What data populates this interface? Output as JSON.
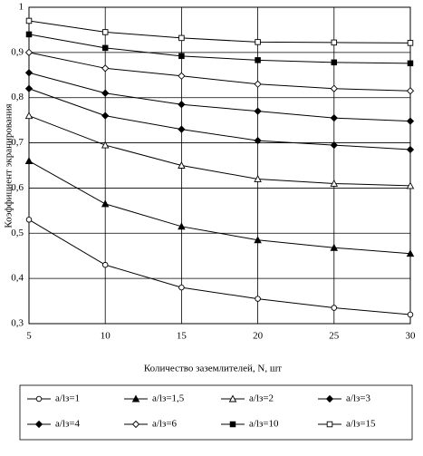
{
  "chart_data": {
    "type": "line",
    "x_label": "Количество заземлителей, N, шт",
    "y_label": "Коэффициент экранирования",
    "x": [
      5,
      10,
      15,
      20,
      25,
      30
    ],
    "xlim": [
      5,
      30
    ],
    "xticks": [
      5,
      10,
      15,
      20,
      25,
      30
    ],
    "ylim": [
      0.3,
      1
    ],
    "yticks": [
      {
        "value": 0.3,
        "label": "0,3"
      },
      {
        "value": 0.4,
        "label": "0,4"
      },
      {
        "value": 0.5,
        "label": "0,5"
      },
      {
        "value": 0.6,
        "label": "0,6"
      },
      {
        "value": 0.7,
        "label": "0,7"
      },
      {
        "value": 0.8,
        "label": "0,8"
      },
      {
        "value": 0.9,
        "label": "0,9"
      },
      1
    ],
    "grid": true,
    "legend": "bottom",
    "series": [
      {
        "name": "a/lз=1",
        "color": "#000000",
        "marker": "circle",
        "marker_fill": "open",
        "values": [
          0.53,
          0.43,
          0.38,
          0.355,
          0.335,
          0.32
        ]
      },
      {
        "name": "a/lз=1,5",
        "color": "#000000",
        "marker": "triangle",
        "marker_fill": "filled",
        "values": [
          0.66,
          0.565,
          0.515,
          0.485,
          0.468,
          0.455
        ]
      },
      {
        "name": "a/lз=2",
        "color": "#000000",
        "marker": "triangle",
        "marker_fill": "open",
        "values": [
          0.76,
          0.695,
          0.65,
          0.62,
          0.61,
          0.605
        ]
      },
      {
        "name": "a/lз=3",
        "color": "#000000",
        "marker": "diamond",
        "marker_fill": "filled",
        "values": [
          0.82,
          0.76,
          0.73,
          0.705,
          0.695,
          0.685
        ]
      },
      {
        "name": "a/lз=4",
        "color": "#000000",
        "marker": "diamond",
        "marker_fill": "filled",
        "values": [
          0.855,
          0.81,
          0.785,
          0.77,
          0.755,
          0.748
        ]
      },
      {
        "name": "a/lз=6",
        "color": "#000000",
        "marker": "diamond",
        "marker_fill": "open",
        "values": [
          0.9,
          0.865,
          0.848,
          0.83,
          0.82,
          0.815
        ]
      },
      {
        "name": "a/lз=10",
        "color": "#000000",
        "marker": "square",
        "marker_fill": "filled",
        "values": [
          0.94,
          0.91,
          0.892,
          0.883,
          0.878,
          0.876
        ]
      },
      {
        "name": "a/lз=15",
        "color": "#000000",
        "marker": "square",
        "marker_fill": "open",
        "values": [
          0.97,
          0.945,
          0.932,
          0.923,
          0.922,
          0.921
        ]
      }
    ]
  }
}
